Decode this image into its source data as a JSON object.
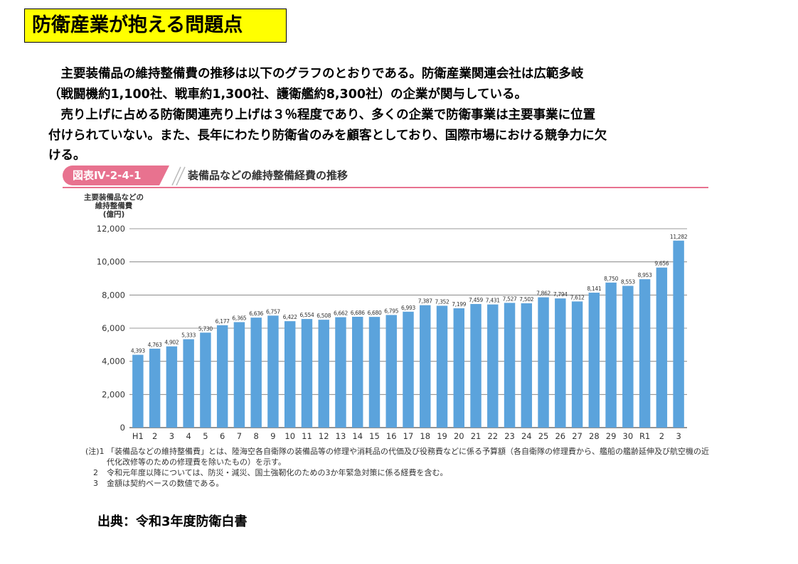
{
  "slide_title": "防衛産業が抱える問題点",
  "paragraphs": [
    "　主要装備品の維持整備費の推移は以下のグラフのとおりである。防衛産業関連会社は広範多岐",
    "（戦闘機約1,100社、戦車約1,300社、護衛艦約8,300社）の企業が関与している。",
    "　売り上げに占める防衛関連売り上げは３％程度であり、多くの企業で防衛事業は主要事業に位置",
    "付けられていない。また、長年にわたり防衛省のみを顧客としており、国際市場における競争力に欠",
    "ける。"
  ],
  "figure": {
    "tag": "図表Ⅳ-2-4-1",
    "title": "装備品などの維持整備経費の推移",
    "tag_color": "#e8728f"
  },
  "chart_data": {
    "type": "bar",
    "ylabel_lines": [
      "主要装備品などの",
      "維持整備費",
      "(億円)"
    ],
    "xlabel": "",
    "ylim": [
      0,
      12000
    ],
    "yticks": [
      0,
      2000,
      4000,
      6000,
      8000,
      10000,
      12000
    ],
    "ytick_labels": [
      "0",
      "2,000",
      "4,000",
      "6,000",
      "8,000",
      "10,000",
      "12,000"
    ],
    "grid": true,
    "bar_color": "#5ba3dc",
    "categories": [
      "H1",
      "2",
      "3",
      "4",
      "5",
      "6",
      "7",
      "8",
      "9",
      "10",
      "11",
      "12",
      "13",
      "14",
      "15",
      "16",
      "17",
      "18",
      "19",
      "20",
      "21",
      "22",
      "23",
      "24",
      "25",
      "26",
      "27",
      "28",
      "29",
      "30",
      "R1",
      "2",
      "3"
    ],
    "values": [
      4393,
      4763,
      4902,
      5333,
      5730,
      6177,
      6365,
      6636,
      6757,
      6422,
      6554,
      6508,
      6662,
      6686,
      6680,
      6795,
      6993,
      7387,
      7352,
      7199,
      7459,
      7431,
      7527,
      7502,
      7862,
      7794,
      7612,
      8141,
      8750,
      8553,
      8953,
      9656,
      11282
    ],
    "value_labels": [
      "4,393",
      "4,763",
      "4,902",
      "5,333",
      "5,730",
      "6,177",
      "6,365",
      "6,636",
      "6,757",
      "6,422",
      "6,554",
      "6,508",
      "6,662",
      "6,686",
      "6,680",
      "6,795",
      "6,993",
      "7,387",
      "7,352",
      "7,199",
      "7,459",
      "7,431",
      "7,527",
      "7,502",
      "7,862",
      "7,794",
      "7,612",
      "8,141",
      "8,750",
      "8,553",
      "8,953",
      "9,656",
      "11,282"
    ]
  },
  "notes": [
    {
      "num": "(注)1",
      "text": "「装備品などの維持整備費」とは、陸海空各自衛隊の装備品等の修理や消耗品の代価及び役務費などに係る予算額（各自衛隊の修理費から、艦船の艦齢延伸及び航空機の近代化改修等のための修理費を除いたもの）を示す。"
    },
    {
      "num": "2",
      "text": "令和元年度以降については、防災・減災、国土強靭化のための3か年緊急対策に係る経費を含む。"
    },
    {
      "num": "3",
      "text": "金額は契約ベースの数値である。"
    }
  ],
  "source": "出典：令和3年度防衛白書"
}
